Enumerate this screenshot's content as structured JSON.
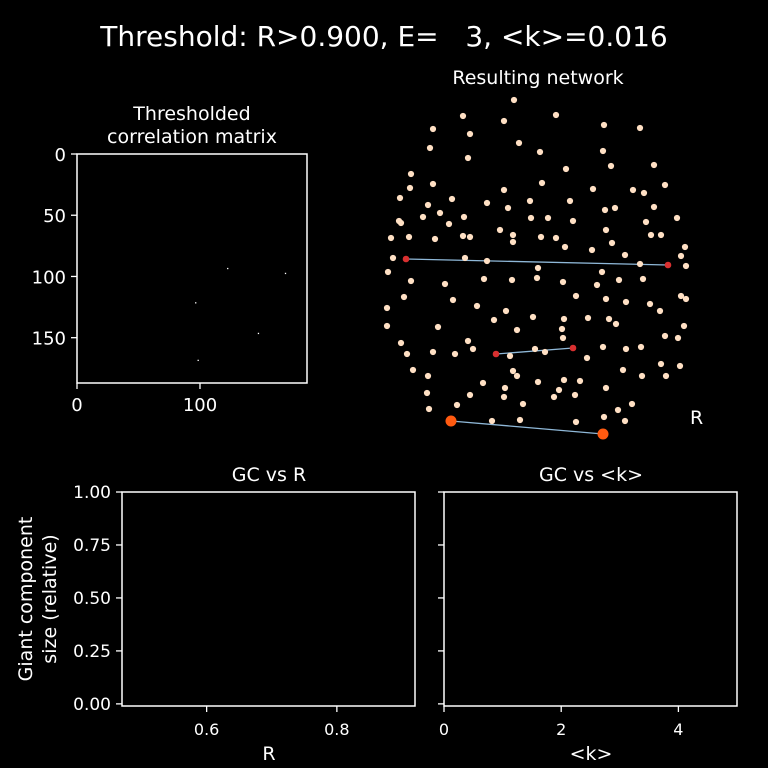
{
  "suptitle": "Threshold: R>0.900, E=   3, <k>=0.016",
  "chart_data": [
    {
      "type": "heatmap",
      "title_lines": [
        "Thresholded",
        "correlation matrix"
      ],
      "xticks": [
        0,
        100
      ],
      "yticks": [
        0,
        50,
        100,
        150
      ],
      "xlim": [
        0,
        187
      ],
      "ylim": [
        187,
        0
      ],
      "nonzero_cells": [
        {
          "x": 122,
          "y": 93
        },
        {
          "x": 169,
          "y": 97
        },
        {
          "x": 96,
          "y": 121
        },
        {
          "x": 147,
          "y": 146
        },
        {
          "x": 98,
          "y": 168
        }
      ]
    },
    {
      "type": "network",
      "title": "Resulting network",
      "side_label": "R",
      "edge_color": "#8fb8d8",
      "node_color": "#ffe0c4",
      "edge_node_colors": [
        "#d93030",
        "#ff5a10"
      ],
      "num_edges": 3
    },
    {
      "type": "line",
      "title": "GC vs R",
      "xlabel": "R",
      "ylabel_lines": [
        "Giant component",
        "size (relative)"
      ],
      "xlim": [
        0.47,
        0.92
      ],
      "ylim": [
        -0.01,
        1.0
      ],
      "xticks": [
        "0.6",
        "0.8"
      ],
      "xtick_values": [
        0.6,
        0.8
      ],
      "yticks": [
        "0.00",
        "0.25",
        "0.50",
        "0.75",
        "1.00"
      ],
      "ytick_values": [
        0,
        0.25,
        0.5,
        0.75,
        1.0
      ],
      "series": []
    },
    {
      "type": "line",
      "title": "GC vs <k>",
      "xlabel": "<k>",
      "xlim": [
        0,
        5
      ],
      "ylim": [
        -0.01,
        1.0
      ],
      "xticks": [
        "0",
        "2",
        "4"
      ],
      "xtick_values": [
        0,
        2,
        4
      ],
      "ytick_values": [
        0,
        0.25,
        0.5,
        0.75,
        1.0
      ],
      "series": []
    }
  ]
}
